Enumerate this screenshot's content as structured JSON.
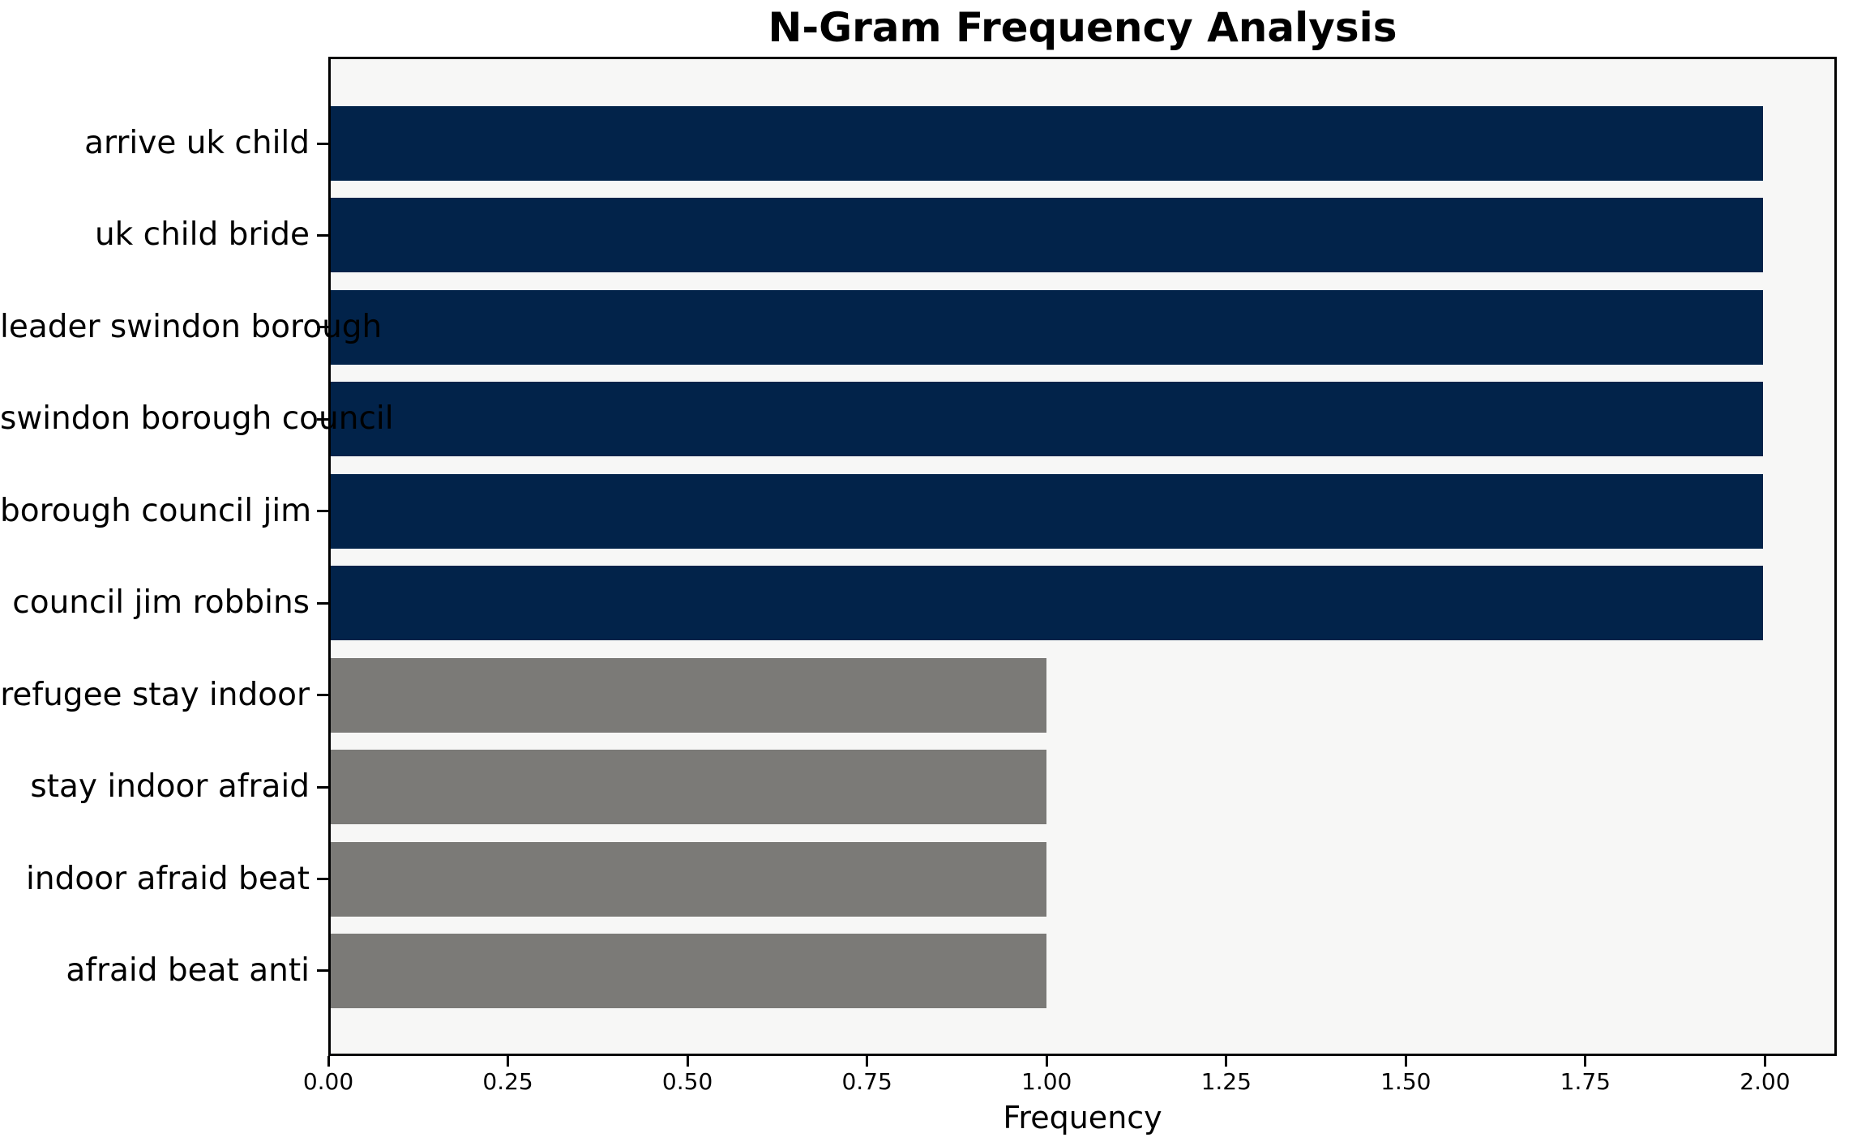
{
  "title": "N-Gram Frequency Analysis",
  "chart_data": {
    "type": "bar",
    "orientation": "horizontal",
    "title": "N-Gram Frequency Analysis",
    "xlabel": "Frequency",
    "ylabel": "",
    "categories": [
      "arrive uk child",
      "uk child bride",
      "leader swindon borough",
      "swindon borough council",
      "borough council jim",
      "council jim robbins",
      "refugee stay indoor",
      "stay indoor afraid",
      "indoor afraid beat",
      "afraid beat anti"
    ],
    "values": [
      2,
      2,
      2,
      2,
      2,
      2,
      1,
      1,
      1,
      1
    ],
    "bar_colors": [
      "#02234a",
      "#02234a",
      "#02234a",
      "#02234a",
      "#02234a",
      "#02234a",
      "#7b7a77",
      "#7b7a77",
      "#7b7a77",
      "#7b7a77"
    ],
    "xlim": [
      0,
      2.1
    ],
    "xticks": [
      0,
      0.25,
      0.5,
      0.75,
      1.0,
      1.25,
      1.5,
      1.75,
      2.0
    ],
    "xtick_labels": [
      "0.00",
      "0.25",
      "0.50",
      "0.75",
      "1.00",
      "1.25",
      "1.50",
      "1.75",
      "2.00"
    ],
    "grid": false,
    "legend": "none",
    "colors": {
      "high_frequency_bar": "#02234a",
      "low_frequency_bar": "#7b7a77",
      "plot_background": "#f7f7f6",
      "figure_background": "#ffffff",
      "spine": "#000000",
      "text": "#000000"
    }
  }
}
